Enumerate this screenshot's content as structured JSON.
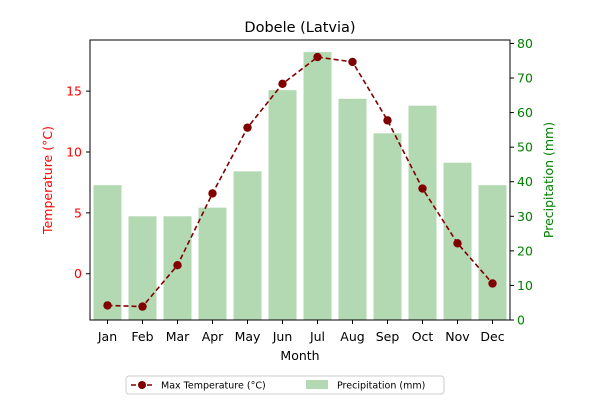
{
  "chart_data": {
    "type": "bar+line",
    "title": "Dobele (Latvia)",
    "xlabel": "Month",
    "categories": [
      "Jan",
      "Feb",
      "Mar",
      "Apr",
      "May",
      "Jun",
      "Jul",
      "Aug",
      "Sep",
      "Oct",
      "Nov",
      "Dec"
    ],
    "left_axis": {
      "label": "Temperature (°C)",
      "color": "#ff0000",
      "range": [
        -3.8,
        19.2
      ],
      "ticks": [
        0,
        5,
        10,
        15
      ]
    },
    "right_axis": {
      "label": "Precipitation (mm)",
      "color": "#008000",
      "range": [
        0,
        81
      ],
      "ticks": [
        0,
        10,
        20,
        30,
        40,
        50,
        60,
        70,
        80
      ]
    },
    "series": [
      {
        "name": "Max Temperature (°C)",
        "type": "line",
        "axis": "left",
        "color": "#800000",
        "values": [
          -2.6,
          -2.7,
          0.7,
          6.6,
          12.0,
          15.6,
          17.8,
          17.4,
          12.6,
          7.0,
          2.5,
          -0.8
        ]
      },
      {
        "name": "Precipitation (mm)",
        "type": "bar",
        "axis": "right",
        "color": "#b2d9b2",
        "values": [
          39,
          30,
          30,
          32.5,
          43,
          66.5,
          77.5,
          64,
          54,
          62,
          45.5,
          39
        ]
      }
    ],
    "grid": false,
    "legend": {
      "placement": "bottom-center",
      "columns": 2
    }
  }
}
